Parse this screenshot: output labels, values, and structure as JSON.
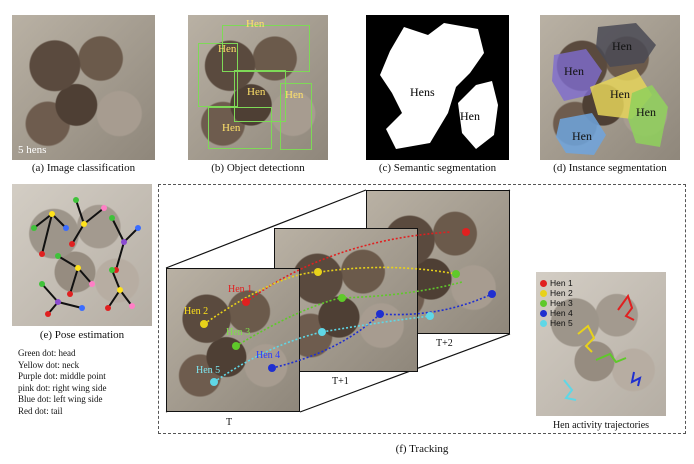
{
  "panels": {
    "a": {
      "caption": "(a) Image classification",
      "overlay": "5 hens"
    },
    "b": {
      "caption": "(b) Object detectionn",
      "labels": [
        "Hen",
        "Hen",
        "Hen",
        "Hen",
        "Hen"
      ]
    },
    "c": {
      "caption": "(c) Semantic segmentation",
      "labels": [
        "Hens",
        "Hen"
      ]
    },
    "d": {
      "caption": "(d) Instance segmentation",
      "labels": [
        "Hen",
        "Hen",
        "Hen",
        "Hen",
        "Hen"
      ]
    },
    "e": {
      "caption": "(e) Pose estimation"
    },
    "f": {
      "caption": "(f) Tracking",
      "frame_labels": [
        "T",
        "T+1",
        "T+2"
      ],
      "hen_labels": [
        "Hen 1",
        "Hen 2",
        "Hen 3",
        "Hen 4",
        "Hen 5"
      ]
    },
    "trajectories": {
      "caption": "Hen activity trajectories"
    }
  },
  "pose_legend": [
    "Green dot: head",
    "Yellow dot: neck",
    "Purple dot: middle point",
    "pink dot: right wing side",
    "Blue dot: left wing side",
    "Red dot: tail"
  ],
  "track_legend": [
    {
      "name": "Hen 1",
      "color": "#e02020"
    },
    {
      "name": "Hen 2",
      "color": "#e8d21a"
    },
    {
      "name": "Hen 3",
      "color": "#5fc92a"
    },
    {
      "name": "Hen 4",
      "color": "#1f2fd0"
    },
    {
      "name": "Hen 5",
      "color": "#5fd7e6"
    }
  ]
}
